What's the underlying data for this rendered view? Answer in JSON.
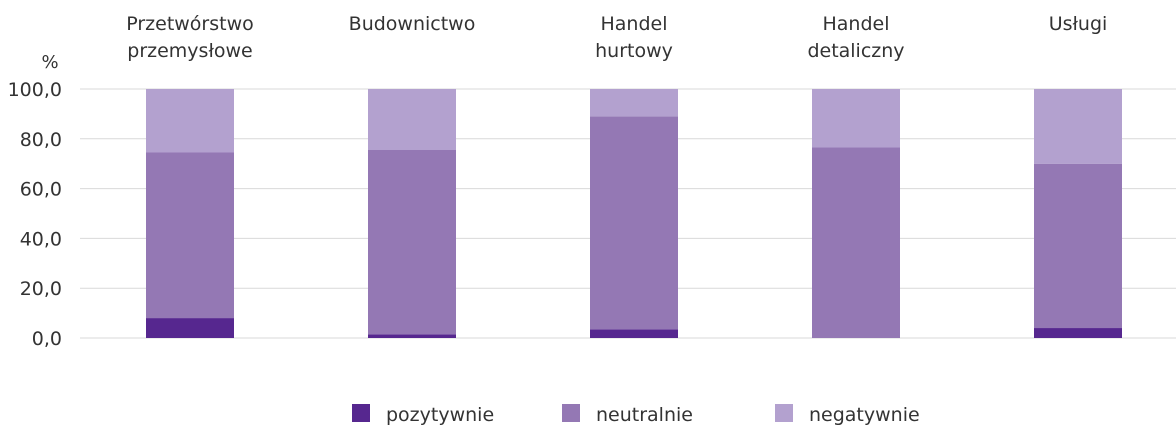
{
  "chart_data": {
    "type": "bar",
    "stacked": true,
    "unit_label": "%",
    "categories": [
      [
        "Przetwórstwo",
        "przemysłowe"
      ],
      [
        "Budownictwo"
      ],
      [
        "Handel",
        "hurtowy"
      ],
      [
        "Handel",
        "detaliczny"
      ],
      [
        "Usługi"
      ]
    ],
    "series": [
      {
        "name": "pozytywnie",
        "color": "#56278f",
        "values": [
          8.0,
          1.5,
          3.5,
          0.0,
          4.0
        ]
      },
      {
        "name": "neutralnie",
        "color": "#9478b4",
        "values": [
          66.5,
          74.0,
          85.5,
          76.5,
          66.0
        ]
      },
      {
        "name": "negatywnie",
        "color": "#b3a1cf",
        "values": [
          25.5,
          24.5,
          11.0,
          23.5,
          30.0
        ]
      }
    ],
    "ylim": [
      0,
      100
    ],
    "yticks": [
      0,
      20,
      40,
      60,
      80,
      100
    ],
    "ytick_labels": [
      "0,0",
      "20,0",
      "40,0",
      "60,0",
      "80,0",
      "100,0"
    ],
    "grid": true,
    "legend_position": "bottom"
  }
}
